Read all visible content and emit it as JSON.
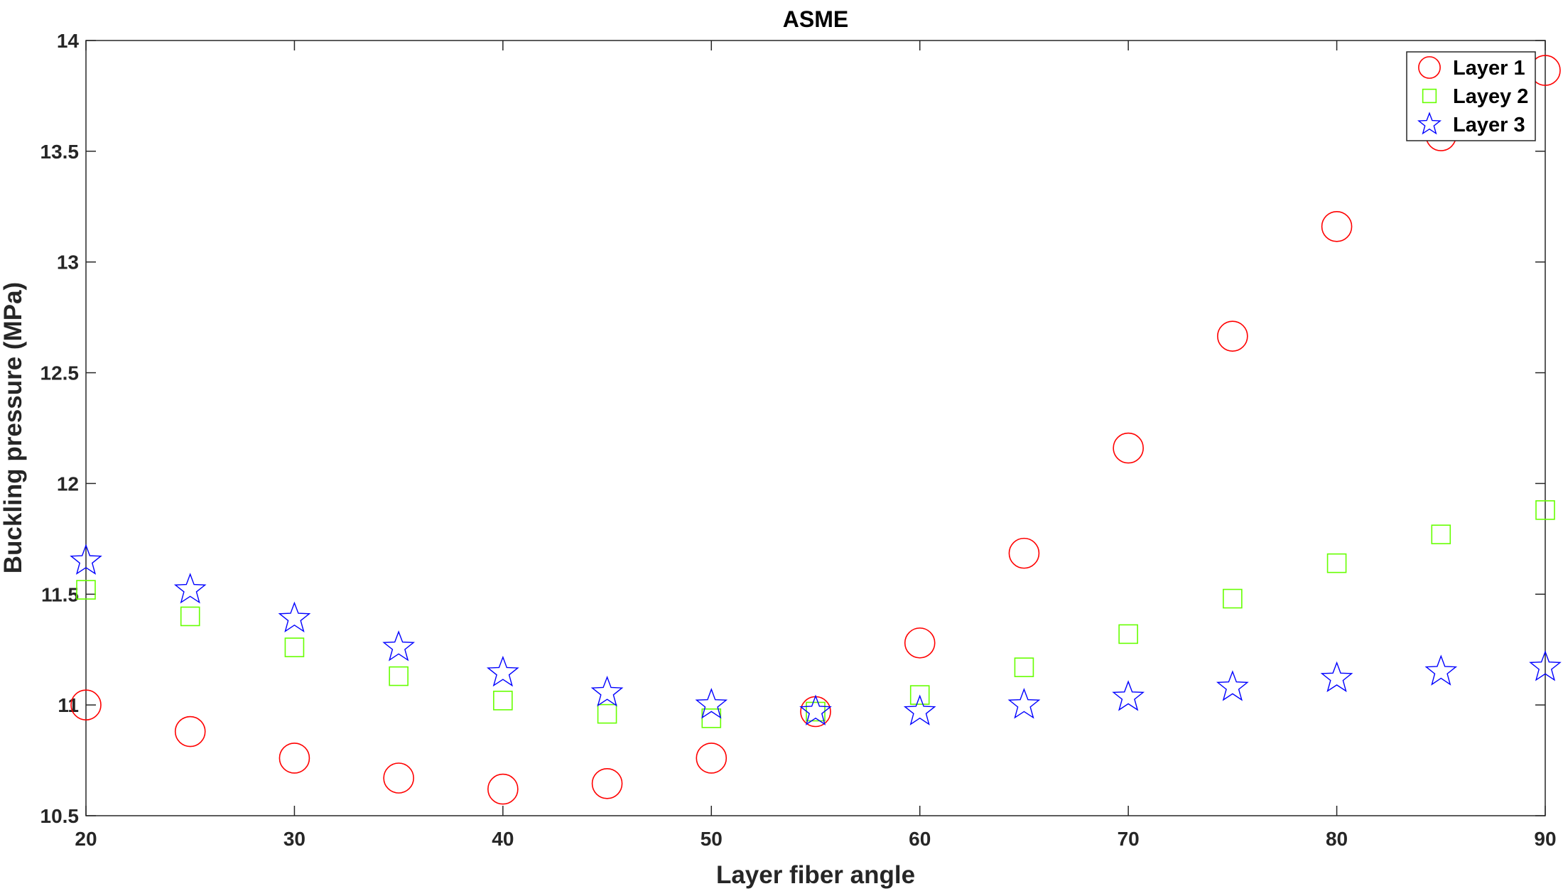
{
  "chart_data": {
    "type": "scatter",
    "title": "ASME",
    "xlabel": "Layer fiber angle",
    "ylabel": "Buckling pressure (MPa)",
    "xlim": [
      20,
      90
    ],
    "ylim": [
      10.5,
      14
    ],
    "xticks": [
      "20",
      "30",
      "40",
      "50",
      "60",
      "70",
      "80",
      "90"
    ],
    "yticks": [
      "10.5",
      "11",
      "11.5",
      "12",
      "12.5",
      "13",
      "13.5",
      "14"
    ],
    "grid": false,
    "legend_placement": "top-right",
    "x": [
      20,
      25,
      30,
      35,
      40,
      45,
      50,
      55,
      60,
      65,
      70,
      75,
      80,
      85,
      90
    ],
    "series": [
      {
        "name": "Layer 1",
        "marker": "circle",
        "color": "#ff0000",
        "values": [
          11.0,
          10.88,
          10.76,
          10.67,
          10.62,
          10.645,
          10.76,
          10.97,
          11.28,
          11.685,
          12.16,
          12.665,
          13.16,
          13.57,
          13.865
        ]
      },
      {
        "name": "Layey 2",
        "marker": "square",
        "color": "#66ff00",
        "values": [
          11.52,
          11.4,
          11.26,
          11.13,
          11.02,
          10.96,
          10.94,
          10.97,
          11.045,
          11.17,
          11.32,
          11.48,
          11.64,
          11.77,
          11.88
        ]
      },
      {
        "name": "Layer 3",
        "marker": "star",
        "color": "#0000ff",
        "values": [
          11.65,
          11.52,
          11.39,
          11.26,
          11.145,
          11.055,
          11.0,
          10.97,
          10.97,
          11.0,
          11.035,
          11.08,
          11.12,
          11.15,
          11.17
        ]
      }
    ]
  }
}
